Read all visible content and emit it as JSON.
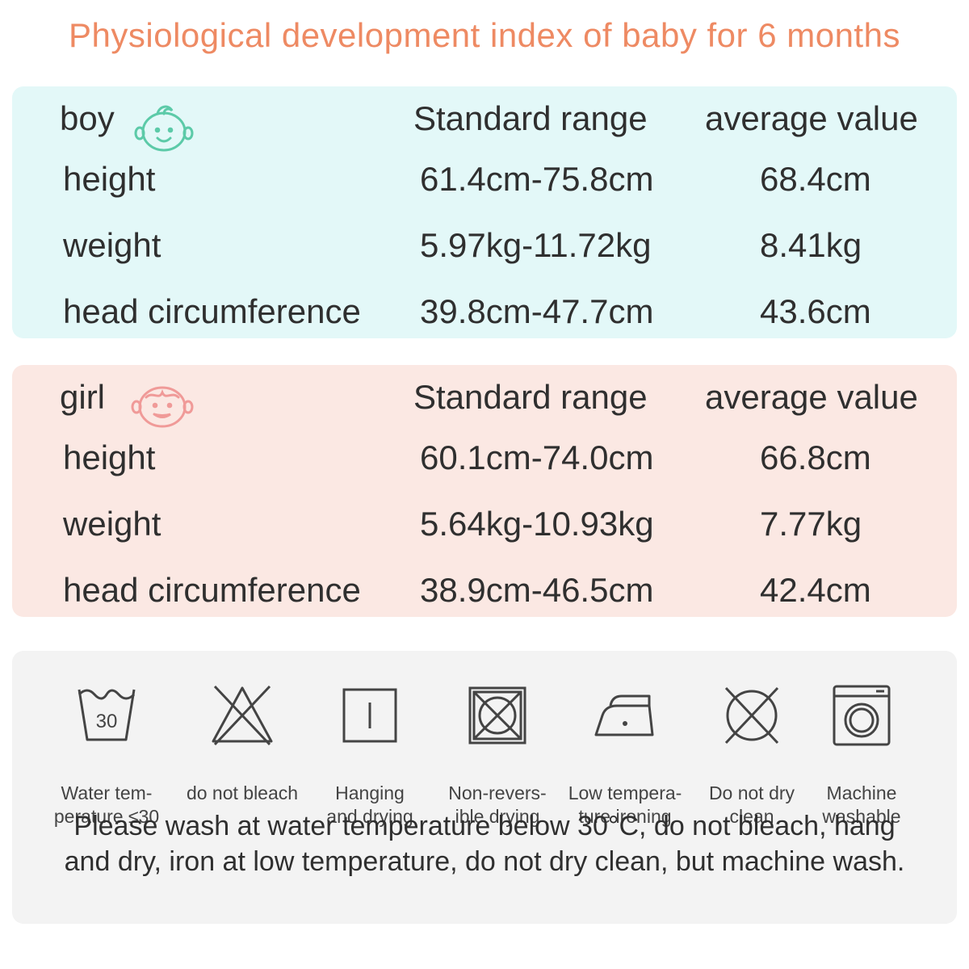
{
  "title": "Physiological development index of baby for 6 months",
  "colors": {
    "title": "#ee8a63",
    "boy_panel": "#e3f8f8",
    "girl_panel": "#fbe8e3",
    "boy_icon": "#5ccaa8",
    "girl_icon": "#f09a98",
    "wash_panel": "#f3f3f3"
  },
  "boy": {
    "label": "boy",
    "icon": "boy-face-icon",
    "col_range": "Standard range",
    "col_avg": "average value",
    "rows": [
      {
        "label": "height",
        "range": "61.4cm-75.8cm",
        "avg": "68.4cm"
      },
      {
        "label": "weight",
        "range": "5.97kg-11.72kg",
        "avg": "8.41kg"
      },
      {
        "label": "head circumference",
        "range": "39.8cm-47.7cm",
        "avg": "43.6cm"
      }
    ]
  },
  "girl": {
    "label": "girl",
    "icon": "girl-face-icon",
    "col_range": "Standard range",
    "col_avg": "average value",
    "rows": [
      {
        "label": "height",
        "range": "60.1cm-74.0cm",
        "avg": "66.8cm"
      },
      {
        "label": "weight",
        "range": "5.64kg-10.93kg",
        "avg": "7.77kg"
      },
      {
        "label": "head circumference",
        "range": "38.9cm-46.5cm",
        "avg": "42.4cm"
      }
    ]
  },
  "care": {
    "items": [
      {
        "icon": "wash-30-icon",
        "badge": "30",
        "label": "Water tem-\nperature ≤30"
      },
      {
        "icon": "no-bleach-icon",
        "label": "do not bleach"
      },
      {
        "icon": "hang-dry-icon",
        "label": "Hanging\nand drying"
      },
      {
        "icon": "no-tumble-dry-icon",
        "label": "Non-revers-\nible drying"
      },
      {
        "icon": "low-iron-icon",
        "label": "Low tempera-\nture ironing"
      },
      {
        "icon": "no-dry-clean-icon",
        "label": "Do not dry\nclean"
      },
      {
        "icon": "machine-wash-icon",
        "label": "Machine\nwashable"
      }
    ],
    "notice": "Please wash at water temperature below 30°C, do not bleach, hang and dry, iron at low temperature, do not dry clean, but machine wash."
  }
}
